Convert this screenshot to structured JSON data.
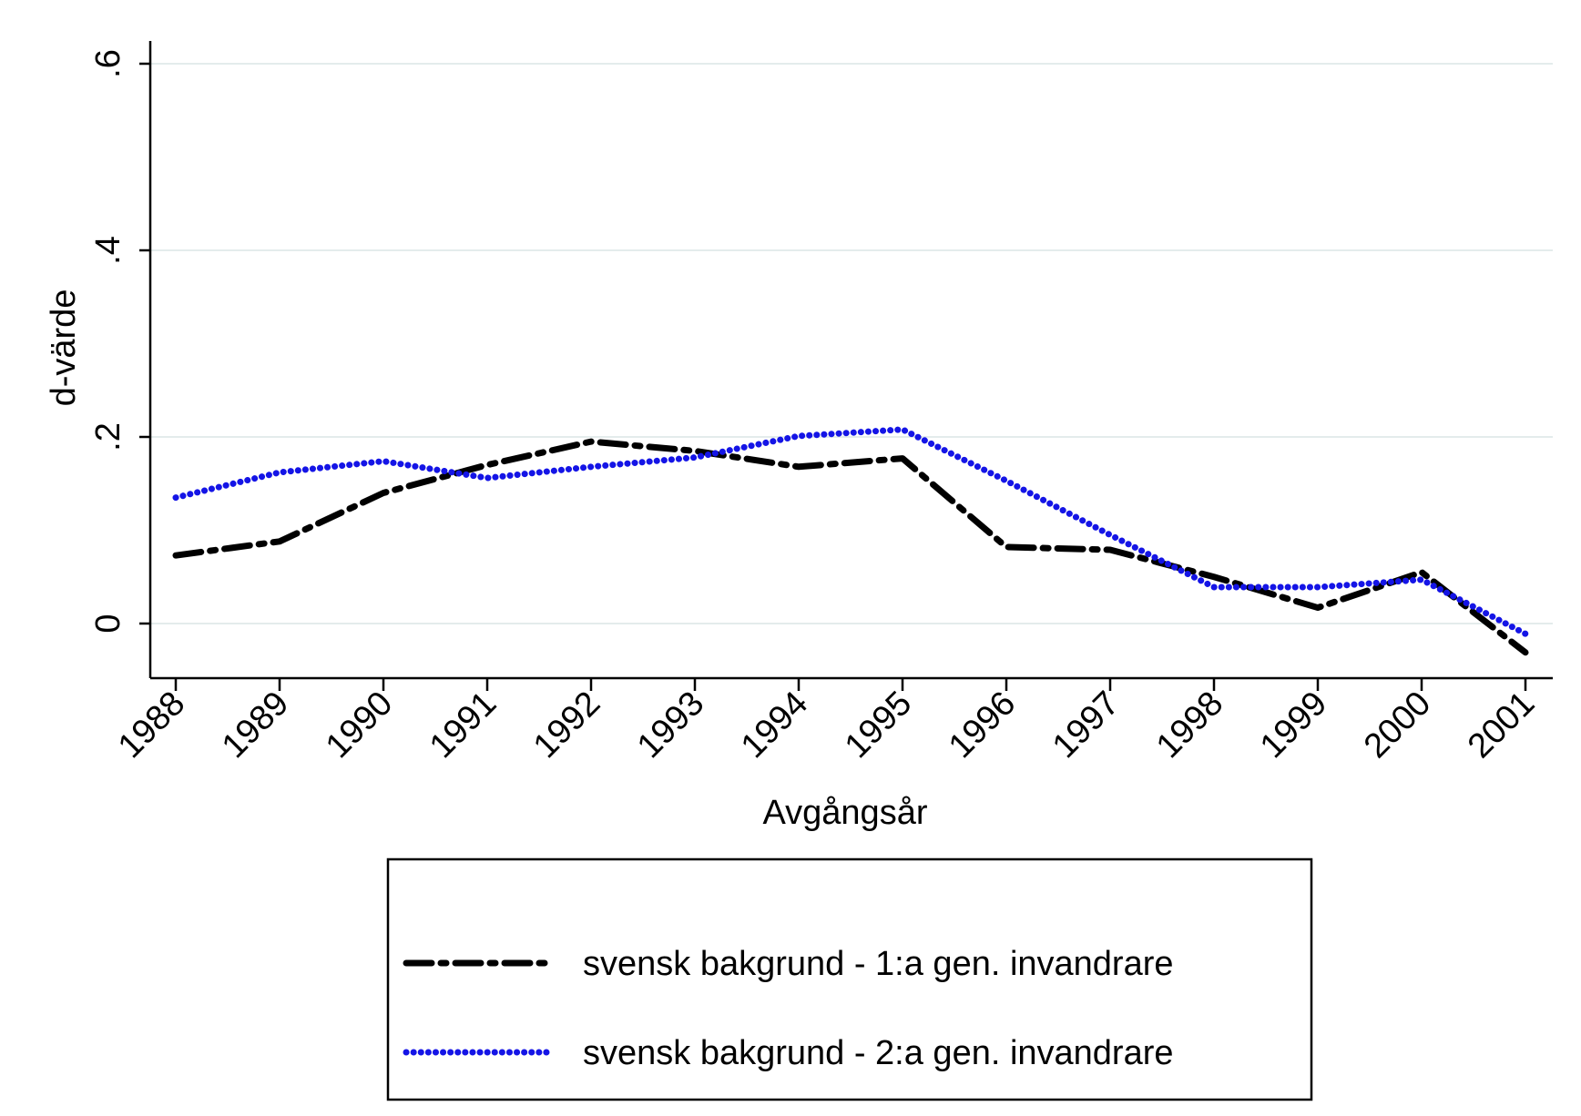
{
  "chart_data": {
    "type": "line",
    "title": "",
    "xlabel": "Avgångsår",
    "ylabel": "d-värde",
    "x": [
      "1988",
      "1989",
      "1990",
      "1991",
      "1992",
      "1993",
      "1994",
      "1995",
      "1996",
      "1997",
      "1998",
      "1999",
      "2000",
      "2001"
    ],
    "y_ticks": [
      0,
      0.2,
      0.4,
      0.6
    ],
    "y_tick_labels": [
      "0",
      ".2",
      ".4",
      ".6"
    ],
    "ylim": [
      -0.06,
      0.625
    ],
    "grid": true,
    "legend_position": "bottom",
    "series": [
      {
        "name": "svensk bakgrund - 1:a gen. invandrare",
        "color": "#000000",
        "style": "dash-dot",
        "values": [
          0.073,
          0.088,
          0.14,
          0.17,
          0.195,
          0.185,
          0.168,
          0.177,
          0.082,
          0.079,
          0.05,
          0.017,
          0.055,
          -0.031
        ]
      },
      {
        "name": "svensk bakgrund - 2:a gen. invandrare",
        "color": "#1414e6",
        "style": "dotted",
        "values": [
          0.135,
          0.162,
          0.174,
          0.156,
          0.168,
          0.178,
          0.201,
          0.208,
          0.153,
          0.095,
          0.039,
          0.039,
          0.047,
          -0.011
        ]
      }
    ]
  }
}
